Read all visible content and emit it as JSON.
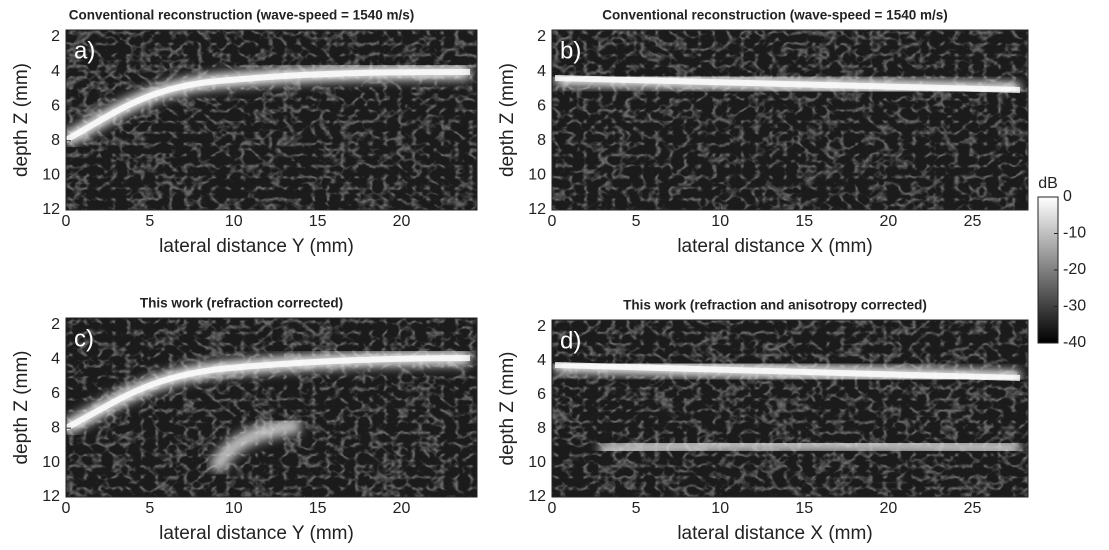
{
  "chart_data": [
    {
      "type": "image",
      "title": "Conventional reconstruction (wave-speed = 1540 m/s)",
      "panel_label": "a)",
      "xlabel": "lateral distance Y (mm)",
      "ylabel": "depth Z (mm)",
      "xlim": [
        0,
        24.5
      ],
      "ylim": [
        1.6,
        12
      ],
      "xticks": [
        0,
        5,
        10,
        15,
        20
      ],
      "yticks": [
        2,
        4,
        6,
        8,
        10,
        12
      ]
    },
    {
      "type": "image",
      "title": "Conventional reconstruction (wave-speed = 1540 m/s)",
      "panel_label": "b)",
      "xlabel": "lateral distance X (mm)",
      "ylabel": "depth Z (mm)",
      "xlim": [
        0,
        28.3
      ],
      "ylim": [
        1.6,
        12
      ],
      "xticks": [
        0,
        5,
        10,
        15,
        20,
        25
      ],
      "yticks": [
        2,
        4,
        6,
        8,
        10,
        12
      ]
    },
    {
      "type": "image",
      "title": "This work (refraction corrected)",
      "panel_label": "c)",
      "xlabel": "lateral distance Y (mm)",
      "ylabel": "depth Z (mm)",
      "xlim": [
        0,
        24.5
      ],
      "ylim": [
        1.6,
        12
      ],
      "xticks": [
        0,
        5,
        10,
        15,
        20
      ],
      "yticks": [
        2,
        4,
        6,
        8,
        10,
        12
      ]
    },
    {
      "type": "image",
      "title": "This work (refraction and anisotropy corrected)",
      "panel_label": "d)",
      "xlabel": "lateral distance X (mm)",
      "ylabel": "depth Z (mm)",
      "xlim": [
        0,
        28.3
      ],
      "ylim": [
        1.6,
        12
      ],
      "xticks": [
        0,
        5,
        10,
        15,
        20,
        25
      ],
      "yticks": [
        2,
        4,
        6,
        8,
        10,
        12
      ]
    },
    {
      "type": "colorbar",
      "label": "dB",
      "ylim": [
        -40,
        0
      ],
      "yticks": [
        0,
        -10,
        -20,
        -30,
        -40
      ]
    }
  ]
}
